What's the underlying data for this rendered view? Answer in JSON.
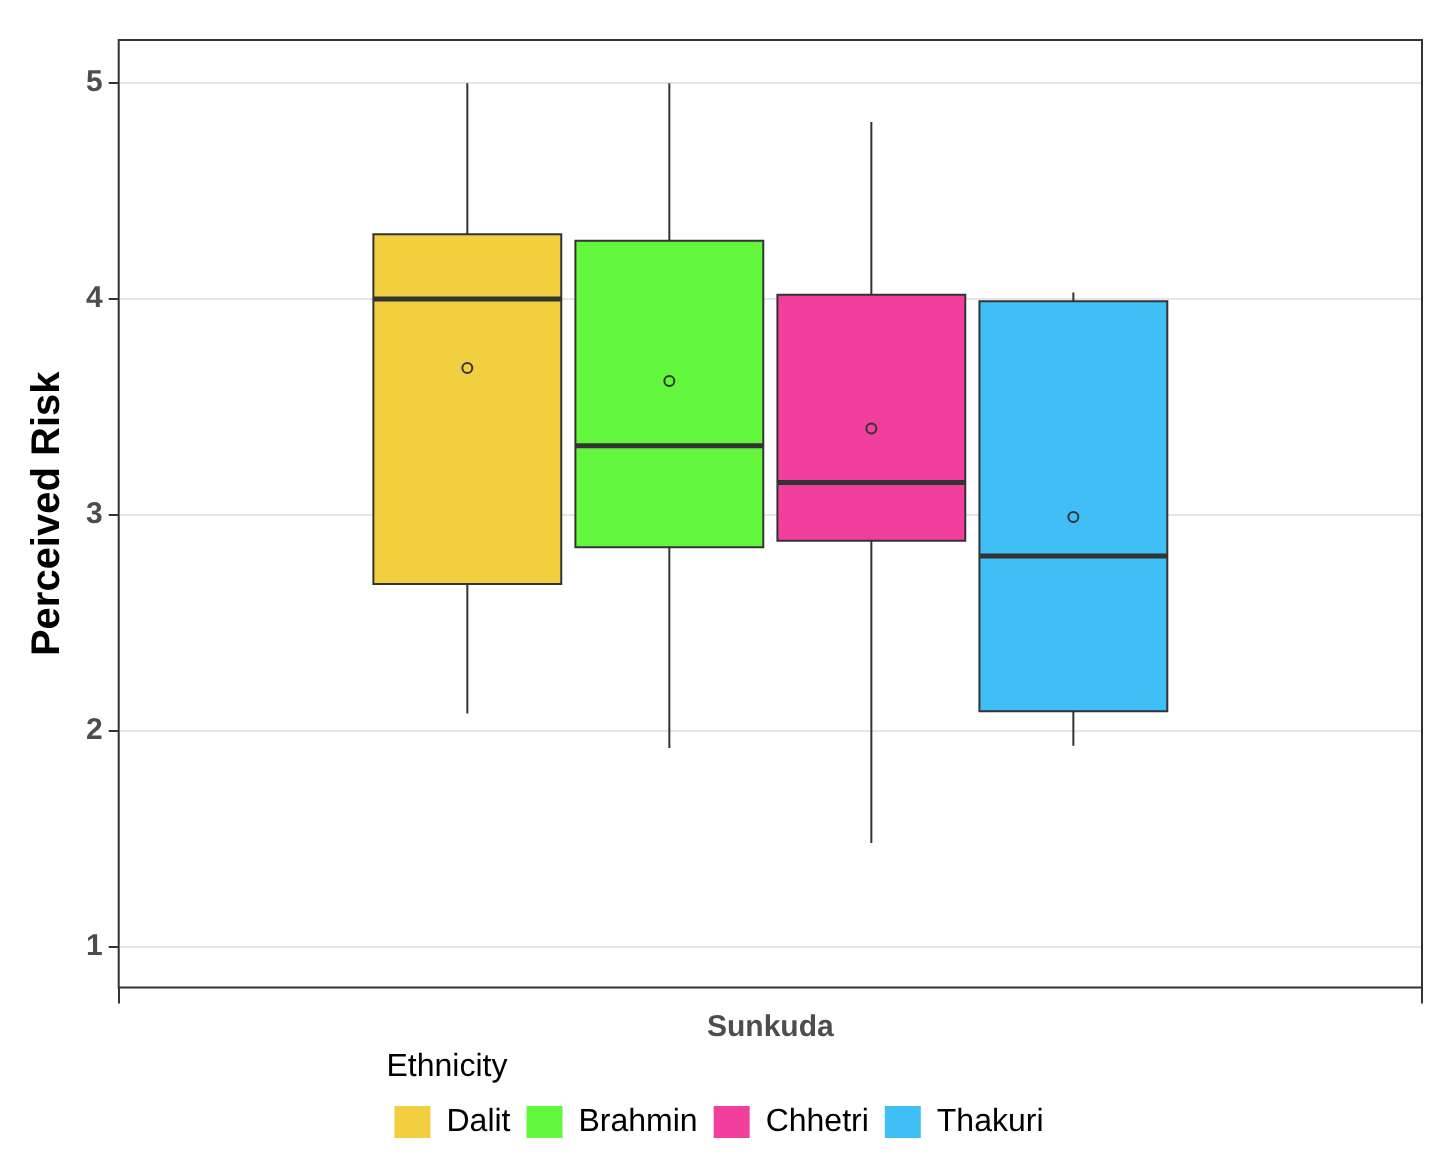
{
  "chart_data": {
    "type": "box",
    "categories": [
      "Sunkuda"
    ],
    "ylabel": "Perceived Risk",
    "legend_title": "Ethnicity",
    "legend": "bottom",
    "grid": true,
    "ylim": [
      0.81,
      5.2
    ],
    "yticks": [
      1,
      2,
      3,
      4,
      5
    ],
    "series": [
      {
        "name": "Dalit",
        "color": "#f2cf3f",
        "boxes": [
          {
            "low": 2.08,
            "q1": 2.68,
            "median": 4.0,
            "q3": 4.3,
            "high": 5.0,
            "mean": 3.68
          }
        ]
      },
      {
        "name": "Brahmin",
        "color": "#62f63d",
        "boxes": [
          {
            "low": 1.92,
            "q1": 2.85,
            "median": 3.32,
            "q3": 4.27,
            "high": 5.0,
            "mean": 3.62
          }
        ]
      },
      {
        "name": "Chhetri",
        "color": "#f23f9e",
        "boxes": [
          {
            "low": 1.48,
            "q1": 2.88,
            "median": 3.15,
            "q3": 4.02,
            "high": 4.82,
            "mean": 3.4
          }
        ]
      },
      {
        "name": "Thakuri",
        "color": "#3fbff5",
        "boxes": [
          {
            "low": 1.93,
            "q1": 2.09,
            "median": 2.81,
            "q3": 3.99,
            "high": 4.03,
            "mean": 2.99
          }
        ]
      }
    ]
  }
}
